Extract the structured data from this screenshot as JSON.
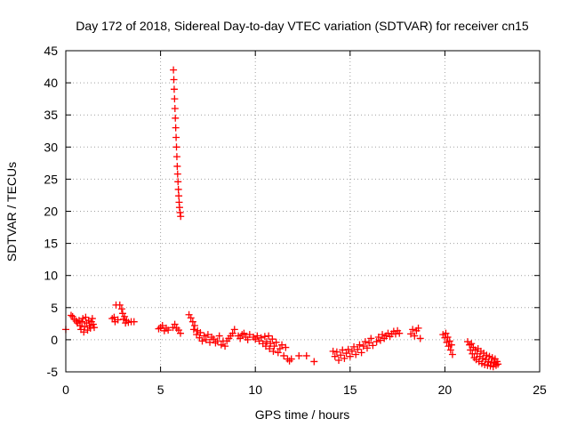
{
  "chart_data": {
    "type": "scatter",
    "title": "Day 172 of 2018, Sidereal Day-to-day VTEC variation (SDTVAR) for receiver cn15",
    "xlabel": "GPS time / hours",
    "ylabel": "SDTVAR / TECUs",
    "xlim": [
      0,
      25
    ],
    "ylim": [
      -5,
      45
    ],
    "xticks": [
      "0",
      "5",
      "10",
      "15",
      "20",
      "25"
    ],
    "yticks": [
      "-5",
      "0",
      "5",
      "10",
      "15",
      "20",
      "25",
      "30",
      "35",
      "40",
      "45"
    ],
    "grid": true,
    "marker": "+",
    "color": "#ff0000",
    "series": [
      {
        "name": "SDTVAR",
        "points": [
          [
            0.0,
            1.6
          ],
          [
            0.28,
            3.8
          ],
          [
            0.36,
            3.6
          ],
          [
            0.45,
            3.2
          ],
          [
            0.55,
            2.9
          ],
          [
            0.62,
            2.6
          ],
          [
            0.7,
            3.0
          ],
          [
            0.75,
            2.2
          ],
          [
            0.8,
            1.6
          ],
          [
            0.85,
            2.8
          ],
          [
            0.9,
            3.3
          ],
          [
            0.95,
            1.2
          ],
          [
            1.0,
            2.0
          ],
          [
            1.05,
            3.5
          ],
          [
            1.1,
            2.6
          ],
          [
            1.15,
            1.5
          ],
          [
            1.2,
            3.0
          ],
          [
            1.25,
            2.2
          ],
          [
            1.3,
            1.8
          ],
          [
            1.35,
            2.8
          ],
          [
            1.4,
            3.3
          ],
          [
            1.45,
            2.4
          ],
          [
            1.5,
            1.9
          ],
          [
            2.45,
            3.3
          ],
          [
            2.55,
            3.5
          ],
          [
            2.6,
            2.8
          ],
          [
            2.65,
            5.4
          ],
          [
            2.75,
            3.1
          ],
          [
            2.85,
            5.4
          ],
          [
            2.95,
            4.8
          ],
          [
            3.0,
            4.1
          ],
          [
            3.05,
            3.2
          ],
          [
            3.1,
            3.6
          ],
          [
            3.15,
            2.6
          ],
          [
            3.2,
            3.0
          ],
          [
            3.3,
            2.7
          ],
          [
            3.45,
            2.8
          ],
          [
            3.6,
            2.8
          ],
          [
            4.9,
            1.7
          ],
          [
            5.0,
            1.9
          ],
          [
            5.1,
            2.2
          ],
          [
            5.2,
            1.4
          ],
          [
            5.3,
            1.8
          ],
          [
            5.4,
            1.5
          ],
          [
            5.65,
            1.9
          ],
          [
            5.75,
            2.4
          ],
          [
            5.85,
            1.8
          ],
          [
            5.95,
            1.5
          ],
          [
            6.05,
            1.0
          ],
          [
            5.68,
            42.0
          ],
          [
            5.7,
            40.5
          ],
          [
            5.72,
            39.0
          ],
          [
            5.74,
            37.5
          ],
          [
            5.76,
            36.0
          ],
          [
            5.78,
            34.5
          ],
          [
            5.8,
            33.0
          ],
          [
            5.82,
            31.5
          ],
          [
            5.84,
            30.0
          ],
          [
            5.86,
            28.5
          ],
          [
            5.88,
            27.0
          ],
          [
            5.9,
            25.8
          ],
          [
            5.92,
            24.6
          ],
          [
            5.94,
            23.4
          ],
          [
            5.96,
            22.4
          ],
          [
            5.98,
            21.4
          ],
          [
            6.0,
            20.6
          ],
          [
            6.03,
            19.8
          ],
          [
            6.06,
            19.2
          ],
          [
            6.5,
            3.9
          ],
          [
            6.6,
            3.4
          ],
          [
            6.7,
            2.8
          ],
          [
            6.75,
            1.6
          ],
          [
            6.8,
            2.2
          ],
          [
            6.9,
            0.8
          ],
          [
            6.95,
            1.4
          ],
          [
            7.05,
            0.3
          ],
          [
            7.1,
            1.1
          ],
          [
            7.2,
            -0.2
          ],
          [
            7.3,
            0.6
          ],
          [
            7.4,
            0.0
          ],
          [
            7.5,
            0.8
          ],
          [
            7.6,
            -0.4
          ],
          [
            7.7,
            0.4
          ],
          [
            7.8,
            0.1
          ],
          [
            7.9,
            -0.5
          ],
          [
            8.0,
            -0.2
          ],
          [
            8.1,
            0.6
          ],
          [
            8.2,
            -0.8
          ],
          [
            8.3,
            -0.2
          ],
          [
            8.4,
            -1.0
          ],
          [
            8.5,
            -0.2
          ],
          [
            8.6,
            0.2
          ],
          [
            8.7,
            0.6
          ],
          [
            8.8,
            1.0
          ],
          [
            8.9,
            1.6
          ],
          [
            9.1,
            0.6
          ],
          [
            9.2,
            0.2
          ],
          [
            9.3,
            0.8
          ],
          [
            9.4,
            1.0
          ],
          [
            9.5,
            0.4
          ],
          [
            9.6,
            0.0
          ],
          [
            9.7,
            0.8
          ],
          [
            9.9,
            0.4
          ],
          [
            10.0,
            0.1
          ],
          [
            10.1,
            0.6
          ],
          [
            10.2,
            -0.2
          ],
          [
            10.3,
            0.3
          ],
          [
            10.4,
            -0.6
          ],
          [
            10.5,
            0.5
          ],
          [
            10.55,
            -1.0
          ],
          [
            10.6,
            -0.3
          ],
          [
            10.7,
            0.6
          ],
          [
            10.75,
            -1.4
          ],
          [
            10.8,
            -0.6
          ],
          [
            10.9,
            0.1
          ],
          [
            10.95,
            -1.8
          ],
          [
            11.0,
            -1.0
          ],
          [
            11.1,
            -0.4
          ],
          [
            11.2,
            -2.0
          ],
          [
            11.3,
            -1.4
          ],
          [
            11.4,
            -0.8
          ],
          [
            11.5,
            -2.5
          ],
          [
            11.6,
            -1.2
          ],
          [
            11.7,
            -3.0
          ],
          [
            11.8,
            -3.3
          ],
          [
            11.9,
            -3.0
          ],
          [
            12.3,
            -2.5
          ],
          [
            12.7,
            -2.5
          ],
          [
            13.1,
            -3.4
          ],
          [
            14.1,
            -1.8
          ],
          [
            14.2,
            -2.6
          ],
          [
            14.3,
            -1.9
          ],
          [
            14.4,
            -3.2
          ],
          [
            14.5,
            -2.4
          ],
          [
            14.6,
            -1.6
          ],
          [
            14.7,
            -2.9
          ],
          [
            14.8,
            -2.1
          ],
          [
            14.9,
            -1.5
          ],
          [
            15.0,
            -2.6
          ],
          [
            15.1,
            -1.8
          ],
          [
            15.2,
            -1.1
          ],
          [
            15.3,
            -2.3
          ],
          [
            15.4,
            -1.5
          ],
          [
            15.5,
            -0.8
          ],
          [
            15.6,
            -2.0
          ],
          [
            15.7,
            -1.0
          ],
          [
            15.8,
            -0.3
          ],
          [
            15.9,
            -1.3
          ],
          [
            16.0,
            -0.5
          ],
          [
            16.1,
            0.2
          ],
          [
            16.2,
            -0.9
          ],
          [
            16.4,
            -0.3
          ],
          [
            16.5,
            0.4
          ],
          [
            16.6,
            -0.1
          ],
          [
            16.7,
            0.8
          ],
          [
            16.8,
            0.2
          ],
          [
            16.9,
            0.6
          ],
          [
            17.0,
            1.0
          ],
          [
            17.1,
            0.5
          ],
          [
            17.2,
            0.9
          ],
          [
            17.3,
            1.3
          ],
          [
            17.4,
            0.9
          ],
          [
            17.5,
            1.4
          ],
          [
            17.6,
            1.0
          ],
          [
            18.2,
            0.9
          ],
          [
            18.3,
            1.6
          ],
          [
            18.4,
            0.6
          ],
          [
            18.5,
            1.4
          ],
          [
            18.6,
            1.8
          ],
          [
            18.7,
            0.2
          ],
          [
            19.9,
            0.8
          ],
          [
            20.0,
            0.3
          ],
          [
            20.05,
            1.0
          ],
          [
            20.1,
            -0.4
          ],
          [
            20.15,
            0.4
          ],
          [
            20.2,
            -1.0
          ],
          [
            20.25,
            -0.2
          ],
          [
            20.3,
            -1.6
          ],
          [
            20.35,
            -0.8
          ],
          [
            20.4,
            -2.3
          ],
          [
            21.2,
            -0.3
          ],
          [
            21.3,
            -0.8
          ],
          [
            21.35,
            -1.6
          ],
          [
            21.4,
            -0.6
          ],
          [
            21.45,
            -2.2
          ],
          [
            21.5,
            -1.2
          ],
          [
            21.55,
            -2.8
          ],
          [
            21.6,
            -1.6
          ],
          [
            21.65,
            -3.1
          ],
          [
            21.7,
            -2.2
          ],
          [
            21.75,
            -1.4
          ],
          [
            21.8,
            -3.4
          ],
          [
            21.85,
            -2.6
          ],
          [
            21.9,
            -1.8
          ],
          [
            21.95,
            -3.7
          ],
          [
            22.0,
            -2.9
          ],
          [
            22.05,
            -2.1
          ],
          [
            22.1,
            -3.9
          ],
          [
            22.15,
            -3.1
          ],
          [
            22.2,
            -2.4
          ],
          [
            22.25,
            -4.0
          ],
          [
            22.3,
            -3.4
          ],
          [
            22.35,
            -2.6
          ],
          [
            22.4,
            -4.1
          ],
          [
            22.45,
            -3.5
          ],
          [
            22.5,
            -2.8
          ],
          [
            22.55,
            -4.2
          ],
          [
            22.6,
            -3.6
          ],
          [
            22.65,
            -3.0
          ],
          [
            22.7,
            -4.0
          ],
          [
            22.75,
            -3.4
          ],
          [
            22.8,
            -3.8
          ]
        ]
      }
    ]
  }
}
